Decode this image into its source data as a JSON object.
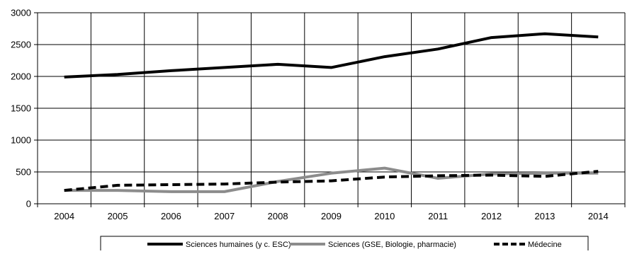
{
  "chart_data": {
    "type": "line",
    "title": "",
    "xlabel": "",
    "ylabel": "",
    "categories": [
      "2004",
      "2005",
      "2006",
      "2007",
      "2008",
      "2009",
      "2010",
      "2011",
      "2012",
      "2013",
      "2014"
    ],
    "ylim": [
      0,
      3000
    ],
    "yticks": [
      0,
      500,
      1000,
      1500,
      2000,
      2500,
      3000
    ],
    "grid": "on",
    "legend_position": "bottom",
    "series": [
      {
        "name": "Sciences humaines (y c. ESC)",
        "color": "#000000",
        "style": "solid",
        "values": [
          1990,
          2030,
          2090,
          2140,
          2190,
          2140,
          2310,
          2430,
          2610,
          2670,
          2620
        ]
      },
      {
        "name": "Sciences (GSE, Biologie, pharmacie)",
        "color": "#8c8c8c",
        "style": "solid",
        "values": [
          210,
          210,
          190,
          190,
          350,
          480,
          560,
          400,
          470,
          480,
          480
        ]
      },
      {
        "name": "Médecine",
        "color": "#000000",
        "style": "dashed",
        "values": [
          210,
          290,
          300,
          310,
          340,
          360,
          420,
          440,
          450,
          430,
          510
        ]
      }
    ]
  }
}
